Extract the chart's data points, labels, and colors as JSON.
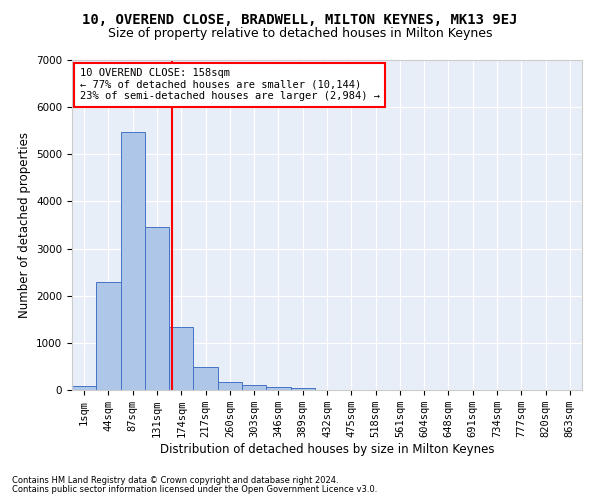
{
  "title": "10, OVEREND CLOSE, BRADWELL, MILTON KEYNES, MK13 9EJ",
  "subtitle": "Size of property relative to detached houses in Milton Keynes",
  "xlabel": "Distribution of detached houses by size in Milton Keynes",
  "ylabel": "Number of detached properties",
  "footnote1": "Contains HM Land Registry data © Crown copyright and database right 2024.",
  "footnote2": "Contains public sector information licensed under the Open Government Licence v3.0.",
  "annotation_title": "10 OVEREND CLOSE: 158sqm",
  "annotation_line1": "← 77% of detached houses are smaller (10,144)",
  "annotation_line2": "23% of semi-detached houses are larger (2,984) →",
  "bar_labels": [
    "1sqm",
    "44sqm",
    "87sqm",
    "131sqm",
    "174sqm",
    "217sqm",
    "260sqm",
    "303sqm",
    "346sqm",
    "389sqm",
    "432sqm",
    "475sqm",
    "518sqm",
    "561sqm",
    "604sqm",
    "648sqm",
    "691sqm",
    "734sqm",
    "777sqm",
    "820sqm",
    "863sqm"
  ],
  "bar_values": [
    80,
    2300,
    5480,
    3450,
    1330,
    480,
    165,
    100,
    70,
    40,
    0,
    0,
    0,
    0,
    0,
    0,
    0,
    0,
    0,
    0,
    0
  ],
  "bar_color": "#aec6e8",
  "bar_edge_color": "#4472c4",
  "vline_color": "red",
  "annotation_box_edge_color": "red",
  "background_color": "#e8eef8",
  "ylim": [
    0,
    7000
  ],
  "yticks": [
    0,
    1000,
    2000,
    3000,
    4000,
    5000,
    6000,
    7000
  ],
  "title_fontsize": 10,
  "subtitle_fontsize": 9,
  "axis_label_fontsize": 8.5,
  "tick_fontsize": 7.5,
  "annotation_fontsize": 7.5,
  "footnote_fontsize": 6
}
